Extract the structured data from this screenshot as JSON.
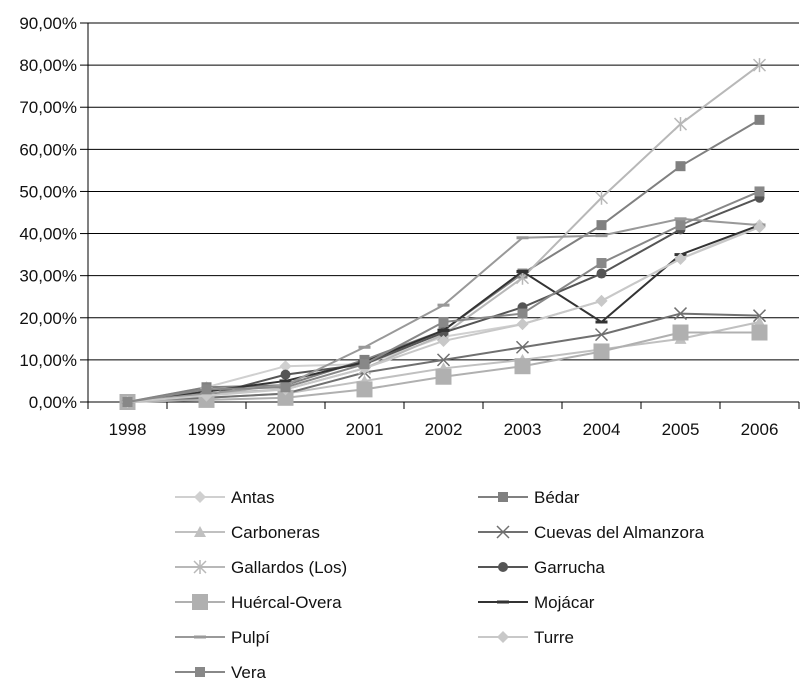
{
  "chart_data": {
    "type": "line",
    "title": "",
    "xlabel": "",
    "ylabel": "",
    "x": [
      "1998",
      "1999",
      "2000",
      "2001",
      "2002",
      "2003",
      "2004",
      "2005",
      "2006"
    ],
    "ylim": [
      0,
      90
    ],
    "yticks": [
      0,
      10,
      20,
      30,
      40,
      50,
      60,
      70,
      80,
      90
    ],
    "ytick_labels": [
      "0,00%",
      "10,00%",
      "20,00%",
      "30,00%",
      "40,00%",
      "50,00%",
      "60,00%",
      "70,00%",
      "80,00%",
      "90,00%"
    ],
    "grid": "horizontal",
    "legend_position": "bottom",
    "series": [
      {
        "name": "Antas",
        "marker": "diamond",
        "color": "#d0d0d0",
        "values": [
          0,
          3.5,
          8.5,
          9,
          15.5,
          18.5,
          24,
          34,
          42
        ]
      },
      {
        "name": "Bédar",
        "marker": "square",
        "color": "#808080",
        "values": [
          0,
          3.5,
          4,
          10,
          17,
          30.5,
          42,
          56,
          67
        ]
      },
      {
        "name": "Carboneras",
        "marker": "triangle",
        "color": "#c0c0c0",
        "values": [
          0,
          1,
          2,
          5,
          8,
          10,
          12.5,
          15,
          19
        ]
      },
      {
        "name": "Cuevas del Almanzora",
        "marker": "x",
        "color": "#707070",
        "values": [
          0,
          1,
          2,
          7,
          10,
          13,
          16,
          21,
          20.5
        ]
      },
      {
        "name": "Gallardos (Los)",
        "marker": "star",
        "color": "#b8b8b8",
        "values": [
          0,
          2,
          3,
          8,
          16,
          29.5,
          48.5,
          66,
          80
        ]
      },
      {
        "name": "Garrucha",
        "marker": "circle",
        "color": "#555555",
        "values": [
          0,
          1.5,
          6.5,
          9,
          16.5,
          22.5,
          30.5,
          41,
          48.5
        ]
      },
      {
        "name": "Huércal-Overa",
        "marker": "bigsquare",
        "color": "#b0b0b0",
        "values": [
          0,
          0.5,
          1,
          3,
          6,
          8.5,
          12,
          16.5,
          16.5
        ]
      },
      {
        "name": "Mojácar",
        "marker": "dash",
        "color": "#333333",
        "values": [
          0,
          2.5,
          5,
          9.5,
          17,
          31,
          19,
          35,
          42
        ]
      },
      {
        "name": "Pulpí",
        "marker": "dash",
        "color": "#999999",
        "values": [
          0,
          2,
          4,
          13,
          23,
          39,
          39.5,
          43.5,
          42
        ]
      },
      {
        "name": "Turre",
        "marker": "diamond",
        "color": "#c8c8c8",
        "values": [
          0,
          1.5,
          3,
          8,
          14.5,
          18.5,
          24,
          34,
          41.5
        ]
      },
      {
        "name": "Vera",
        "marker": "square",
        "color": "#888888",
        "values": [
          0,
          3,
          3.5,
          9,
          19,
          21,
          33,
          42,
          50
        ]
      }
    ]
  }
}
